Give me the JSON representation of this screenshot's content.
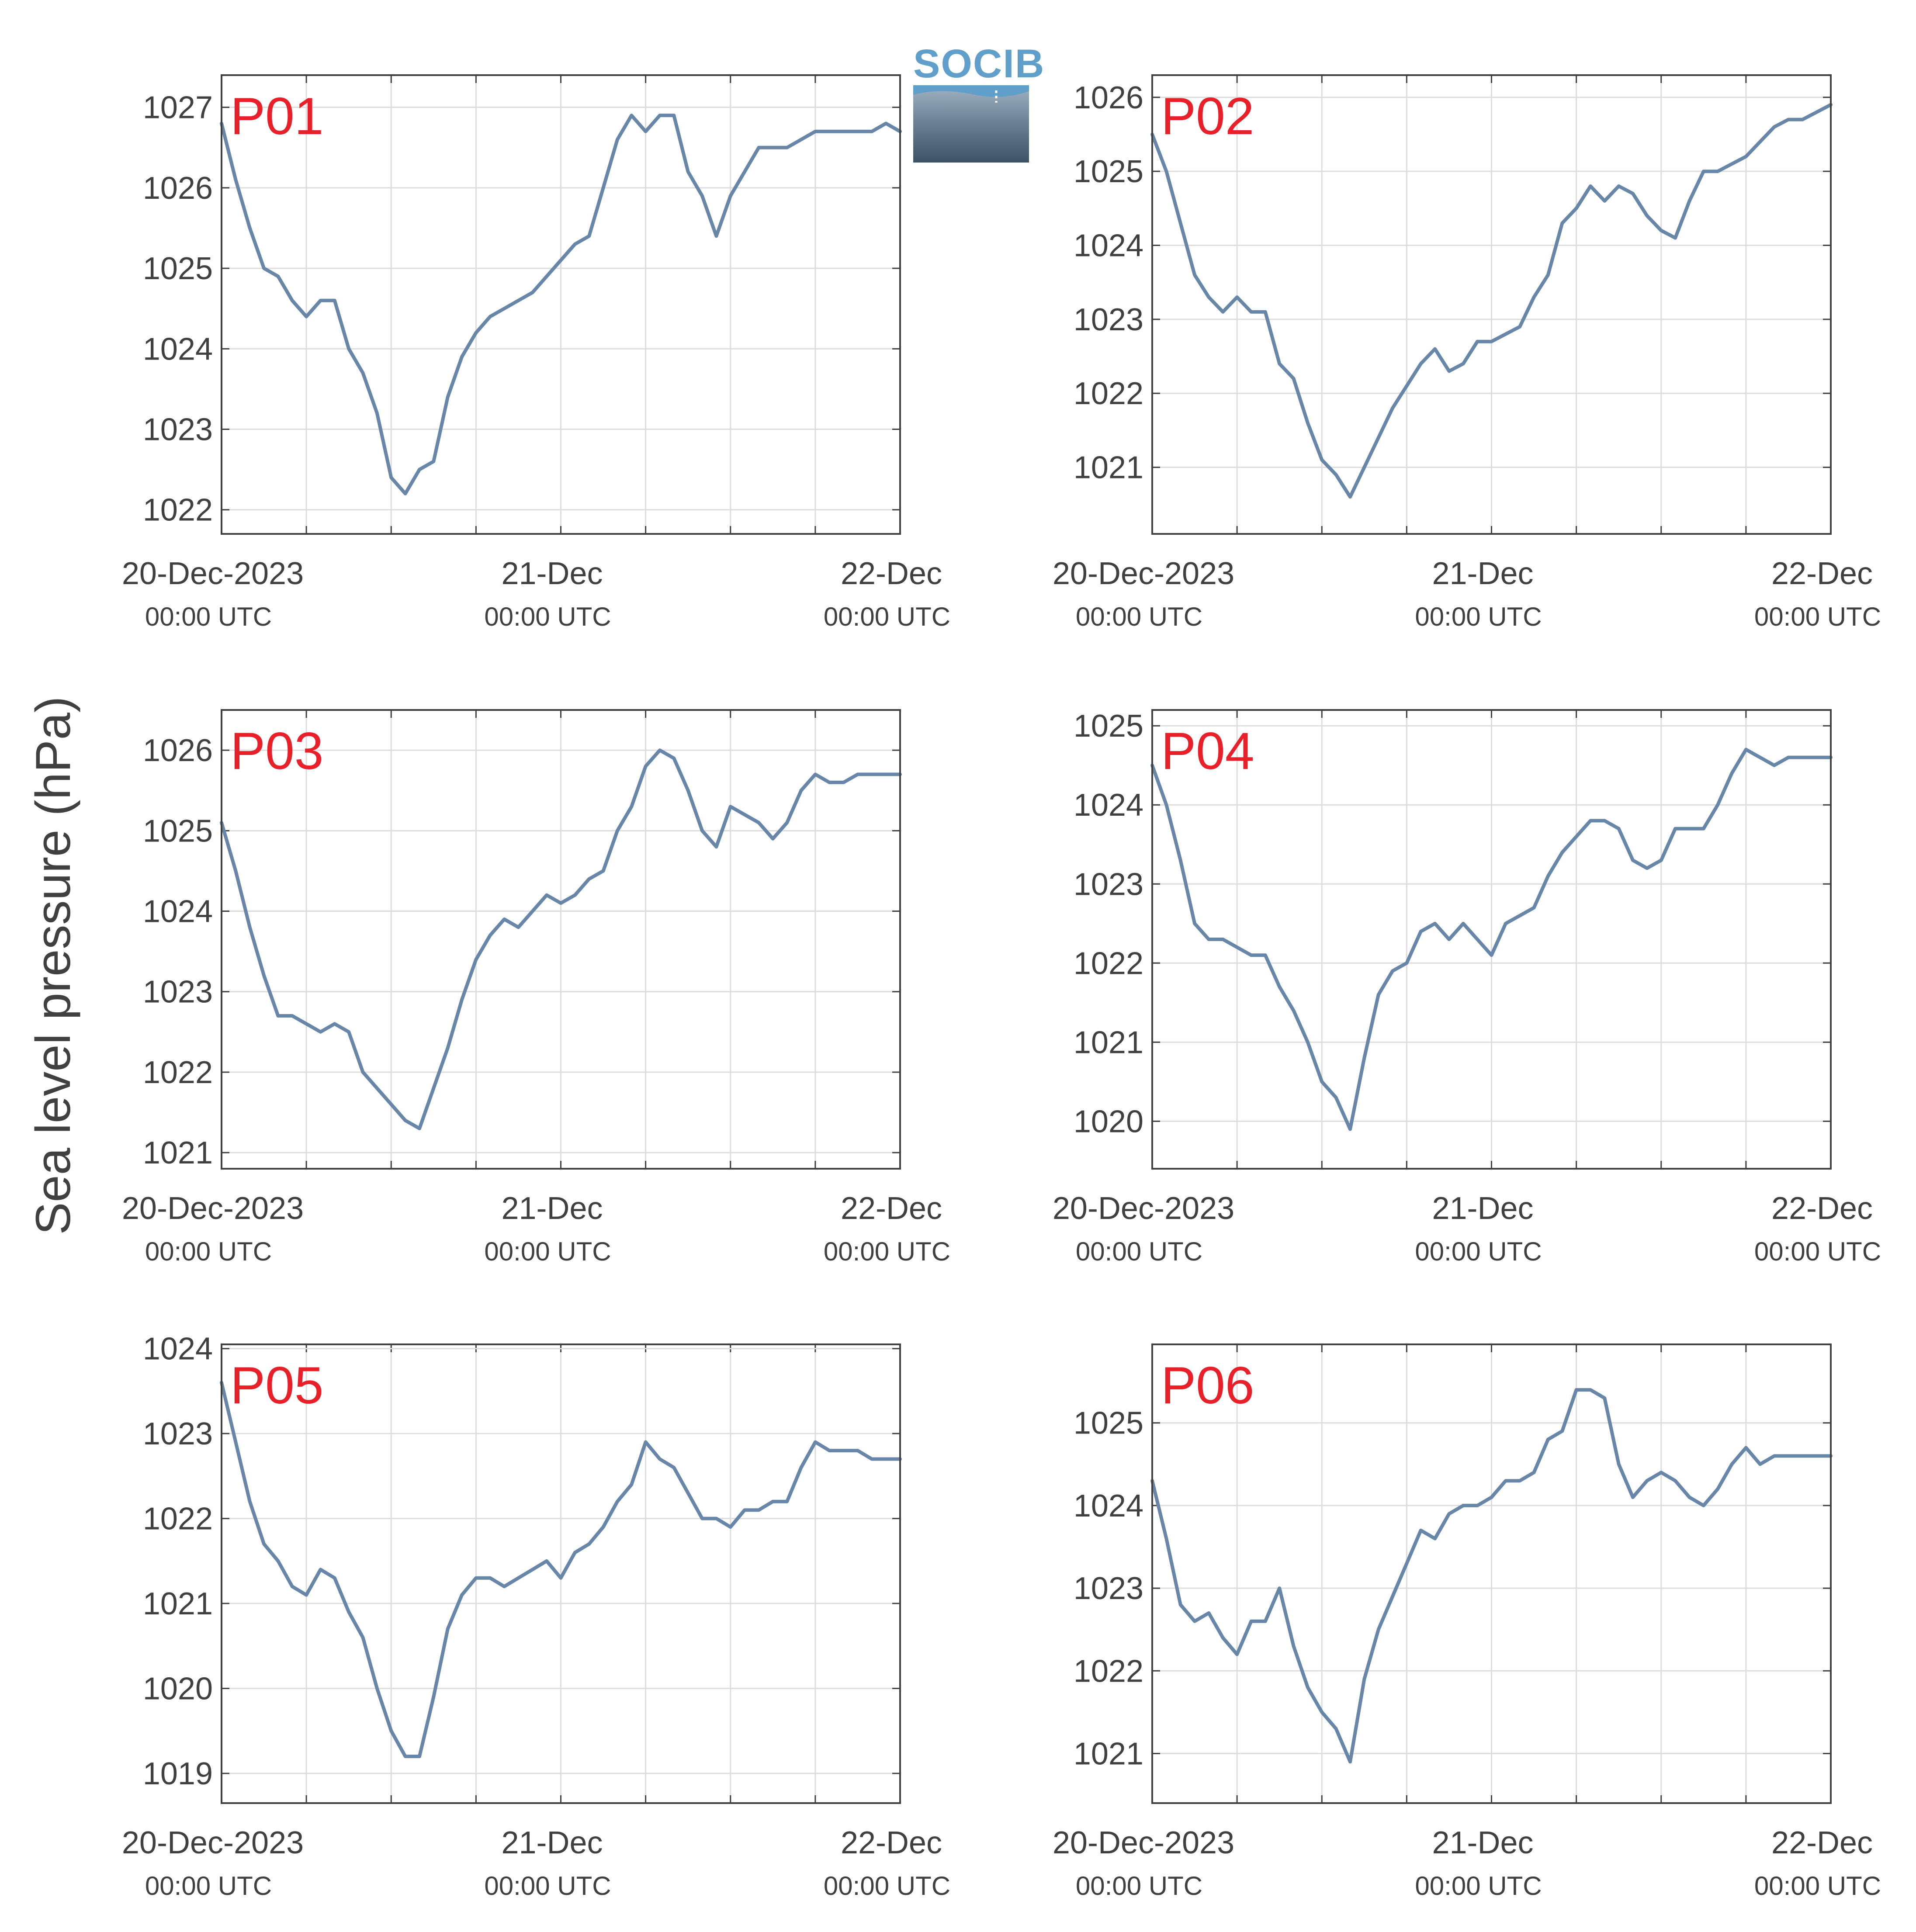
{
  "figure": {
    "ylabel": "Sea level pressure (hPa)",
    "logo_text": "SOCIB",
    "line_color": "#6887a8",
    "label_color": "#e8202a",
    "grid_color": "#dddddd",
    "text_color": "#404040"
  },
  "chart_data": [
    {
      "type": "line",
      "panel_label": "P01",
      "x_ticks": [
        "20-Dec-2023",
        "21-Dec",
        "22-Dec"
      ],
      "x_tick_sublabels": [
        "00:00 UTC",
        "00:00 UTC",
        "00:00 UTC"
      ],
      "x_unit": "hours since 20-Dec-2023 00:00 UTC",
      "xlim": [
        0,
        48
      ],
      "ylim": [
        1021.7,
        1027.4
      ],
      "y_ticks": [
        1022,
        1023,
        1024,
        1025,
        1026,
        1027
      ],
      "x": [
        0,
        1,
        2,
        3,
        4,
        5,
        6,
        7,
        8,
        9,
        10,
        11,
        12,
        13,
        14,
        15,
        16,
        17,
        18,
        19,
        20,
        21,
        22,
        23,
        24,
        25,
        26,
        27,
        28,
        29,
        30,
        31,
        32,
        33,
        34,
        35,
        36,
        37,
        38,
        39,
        40,
        41,
        42,
        43,
        44,
        45,
        46,
        47,
        48
      ],
      "y": [
        1026.8,
        1026.1,
        1025.5,
        1025.0,
        1024.9,
        1024.6,
        1024.4,
        1024.6,
        1024.6,
        1024.0,
        1023.7,
        1023.2,
        1022.4,
        1022.2,
        1022.5,
        1022.6,
        1023.4,
        1023.9,
        1024.2,
        1024.4,
        1024.5,
        1024.6,
        1024.7,
        1024.9,
        1025.1,
        1025.3,
        1025.4,
        1026.0,
        1026.6,
        1026.9,
        1026.7,
        1026.9,
        1026.9,
        1026.2,
        1025.9,
        1025.4,
        1025.9,
        1026.2,
        1026.5,
        1026.5,
        1026.5,
        1026.6,
        1026.7,
        1026.7,
        1026.7,
        1026.7,
        1026.7,
        1026.8,
        1026.7
      ]
    },
    {
      "type": "line",
      "panel_label": "P02",
      "x_ticks": [
        "20-Dec-2023",
        "21-Dec",
        "22-Dec"
      ],
      "x_tick_sublabels": [
        "00:00 UTC",
        "00:00 UTC",
        "00:00 UTC"
      ],
      "x_unit": "hours since 20-Dec-2023 00:00 UTC",
      "xlim": [
        0,
        48
      ],
      "ylim": [
        1020.1,
        1026.3
      ],
      "y_ticks": [
        1021,
        1022,
        1023,
        1024,
        1025,
        1026
      ],
      "x": [
        0,
        1,
        2,
        3,
        4,
        5,
        6,
        7,
        8,
        9,
        10,
        11,
        12,
        13,
        14,
        15,
        16,
        17,
        18,
        19,
        20,
        21,
        22,
        23,
        24,
        25,
        26,
        27,
        28,
        29,
        30,
        31,
        32,
        33,
        34,
        35,
        36,
        37,
        38,
        39,
        40,
        41,
        42,
        43,
        44,
        45,
        46,
        47,
        48
      ],
      "y": [
        1025.5,
        1025.0,
        1024.3,
        1023.6,
        1023.3,
        1023.1,
        1023.3,
        1023.1,
        1023.1,
        1022.4,
        1022.2,
        1021.6,
        1021.1,
        1020.9,
        1020.6,
        1021.0,
        1021.4,
        1021.8,
        1022.1,
        1022.4,
        1022.6,
        1022.3,
        1022.4,
        1022.7,
        1022.7,
        1022.8,
        1022.9,
        1023.3,
        1023.6,
        1024.3,
        1024.5,
        1024.8,
        1024.6,
        1024.8,
        1024.7,
        1024.4,
        1024.2,
        1024.1,
        1024.6,
        1025.0,
        1025.0,
        1025.1,
        1025.2,
        1025.4,
        1025.6,
        1025.7,
        1025.7,
        1025.8,
        1025.9
      ]
    },
    {
      "type": "line",
      "panel_label": "P03",
      "x_ticks": [
        "20-Dec-2023",
        "21-Dec",
        "22-Dec"
      ],
      "x_tick_sublabels": [
        "00:00 UTC",
        "00:00 UTC",
        "00:00 UTC"
      ],
      "x_unit": "hours since 20-Dec-2023 00:00 UTC",
      "xlim": [
        0,
        48
      ],
      "ylim": [
        1020.8,
        1026.5
      ],
      "y_ticks": [
        1021,
        1022,
        1023,
        1024,
        1025,
        1026
      ],
      "x": [
        0,
        1,
        2,
        3,
        4,
        5,
        6,
        7,
        8,
        9,
        10,
        11,
        12,
        13,
        14,
        15,
        16,
        17,
        18,
        19,
        20,
        21,
        22,
        23,
        24,
        25,
        26,
        27,
        28,
        29,
        30,
        31,
        32,
        33,
        34,
        35,
        36,
        37,
        38,
        39,
        40,
        41,
        42,
        43,
        44,
        45,
        46,
        47,
        48
      ],
      "y": [
        1025.1,
        1024.5,
        1023.8,
        1023.2,
        1022.7,
        1022.7,
        1022.6,
        1022.5,
        1022.6,
        1022.5,
        1022.0,
        1021.8,
        1021.6,
        1021.4,
        1021.3,
        1021.8,
        1022.3,
        1022.9,
        1023.4,
        1023.7,
        1023.9,
        1023.8,
        1024.0,
        1024.2,
        1024.1,
        1024.2,
        1024.4,
        1024.5,
        1025.0,
        1025.3,
        1025.8,
        1026.0,
        1025.9,
        1025.5,
        1025.0,
        1024.8,
        1025.3,
        1025.2,
        1025.1,
        1024.9,
        1025.1,
        1025.5,
        1025.7,
        1025.6,
        1025.6,
        1025.7,
        1025.7,
        1025.7,
        1025.7
      ]
    },
    {
      "type": "line",
      "panel_label": "P04",
      "x_ticks": [
        "20-Dec-2023",
        "21-Dec",
        "22-Dec"
      ],
      "x_tick_sublabels": [
        "00:00 UTC",
        "00:00 UTC",
        "00:00 UTC"
      ],
      "x_unit": "hours since 20-Dec-2023 00:00 UTC",
      "xlim": [
        0,
        48
      ],
      "ylim": [
        1019.4,
        1025.2
      ],
      "y_ticks": [
        1020,
        1021,
        1022,
        1023,
        1024,
        1025
      ],
      "x": [
        0,
        1,
        2,
        3,
        4,
        5,
        6,
        7,
        8,
        9,
        10,
        11,
        12,
        13,
        14,
        15,
        16,
        17,
        18,
        19,
        20,
        21,
        22,
        23,
        24,
        25,
        26,
        27,
        28,
        29,
        30,
        31,
        32,
        33,
        34,
        35,
        36,
        37,
        38,
        39,
        40,
        41,
        42,
        43,
        44,
        45,
        46,
        47,
        48
      ],
      "y": [
        1024.5,
        1024.0,
        1023.3,
        1022.5,
        1022.3,
        1022.3,
        1022.2,
        1022.1,
        1022.1,
        1021.7,
        1021.4,
        1021.0,
        1020.5,
        1020.3,
        1019.9,
        1020.8,
        1021.6,
        1021.9,
        1022.0,
        1022.4,
        1022.5,
        1022.3,
        1022.5,
        1022.3,
        1022.1,
        1022.5,
        1022.6,
        1022.7,
        1023.1,
        1023.4,
        1023.6,
        1023.8,
        1023.8,
        1023.7,
        1023.3,
        1023.2,
        1023.3,
        1023.7,
        1023.7,
        1023.7,
        1024.0,
        1024.4,
        1024.7,
        1024.6,
        1024.5,
        1024.6,
        1024.6,
        1024.6,
        1024.6
      ]
    },
    {
      "type": "line",
      "panel_label": "P05",
      "x_ticks": [
        "20-Dec-2023",
        "21-Dec",
        "22-Dec"
      ],
      "x_tick_sublabels": [
        "00:00 UTC",
        "00:00 UTC",
        "00:00 UTC"
      ],
      "x_unit": "hours since 20-Dec-2023 00:00 UTC",
      "xlim": [
        0,
        48
      ],
      "ylim": [
        1018.65,
        1024.05
      ],
      "y_ticks": [
        1019,
        1020,
        1021,
        1022,
        1023,
        1024
      ],
      "x": [
        0,
        1,
        2,
        3,
        4,
        5,
        6,
        7,
        8,
        9,
        10,
        11,
        12,
        13,
        14,
        15,
        16,
        17,
        18,
        19,
        20,
        21,
        22,
        23,
        24,
        25,
        26,
        27,
        28,
        29,
        30,
        31,
        32,
        33,
        34,
        35,
        36,
        37,
        38,
        39,
        40,
        41,
        42,
        43,
        44,
        45,
        46,
        47,
        48
      ],
      "y": [
        1023.6,
        1022.9,
        1022.2,
        1021.7,
        1021.5,
        1021.2,
        1021.1,
        1021.4,
        1021.3,
        1020.9,
        1020.6,
        1020.0,
        1019.5,
        1019.2,
        1019.2,
        1019.9,
        1020.7,
        1021.1,
        1021.3,
        1021.3,
        1021.2,
        1021.3,
        1021.4,
        1021.5,
        1021.3,
        1021.6,
        1021.7,
        1021.9,
        1022.2,
        1022.4,
        1022.9,
        1022.7,
        1022.6,
        1022.3,
        1022.0,
        1022.0,
        1021.9,
        1022.1,
        1022.1,
        1022.2,
        1022.2,
        1022.6,
        1022.9,
        1022.8,
        1022.8,
        1022.8,
        1022.7,
        1022.7,
        1022.7
      ]
    },
    {
      "type": "line",
      "panel_label": "P06",
      "x_ticks": [
        "20-Dec-2023",
        "21-Dec",
        "22-Dec"
      ],
      "x_tick_sublabels": [
        "00:00 UTC",
        "00:00 UTC",
        "00:00 UTC"
      ],
      "x_unit": "hours since 20-Dec-2023 00:00 UTC",
      "xlim": [
        0,
        48
      ],
      "ylim": [
        1020.4,
        1025.95
      ],
      "y_ticks": [
        1021,
        1022,
        1023,
        1024,
        1025
      ],
      "x": [
        0,
        1,
        2,
        3,
        4,
        5,
        6,
        7,
        8,
        9,
        10,
        11,
        12,
        13,
        14,
        15,
        16,
        17,
        18,
        19,
        20,
        21,
        22,
        23,
        24,
        25,
        26,
        27,
        28,
        29,
        30,
        31,
        32,
        33,
        34,
        35,
        36,
        37,
        38,
        39,
        40,
        41,
        42,
        43,
        44,
        45,
        46,
        47,
        48
      ],
      "y": [
        1024.3,
        1023.6,
        1022.8,
        1022.6,
        1022.7,
        1022.4,
        1022.2,
        1022.6,
        1022.6,
        1023.0,
        1022.3,
        1021.8,
        1021.5,
        1021.3,
        1020.9,
        1021.9,
        1022.5,
        1022.9,
        1023.3,
        1023.7,
        1023.6,
        1023.9,
        1024.0,
        1024.0,
        1024.1,
        1024.3,
        1024.3,
        1024.4,
        1024.8,
        1024.9,
        1025.4,
        1025.4,
        1025.3,
        1024.5,
        1024.1,
        1024.3,
        1024.4,
        1024.3,
        1024.1,
        1024.0,
        1024.2,
        1024.5,
        1024.7,
        1024.5,
        1024.6,
        1024.6,
        1024.6,
        1024.6,
        1024.6
      ]
    }
  ]
}
